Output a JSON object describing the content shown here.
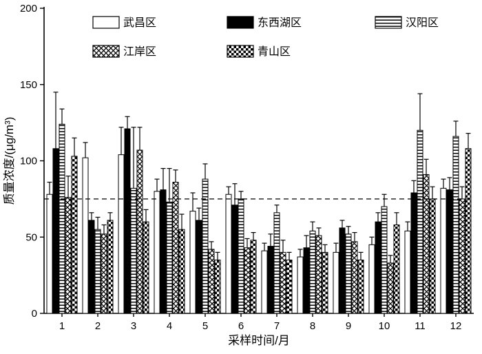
{
  "chart_data": {
    "type": "bar",
    "title": "",
    "xlabel": "采样时间/月",
    "ylabel": "质量浓度/(μg/m³)",
    "ylim": [
      0,
      200
    ],
    "yticks": [
      0,
      50,
      100,
      150,
      200
    ],
    "categories": [
      "1",
      "2",
      "3",
      "4",
      "5",
      "6",
      "7",
      "8",
      "9",
      "10",
      "11",
      "12"
    ],
    "reference_line": 75,
    "grid": false,
    "legend_position": "top-inside-two-rows",
    "bar_edge_color": "#000000",
    "series": [
      {
        "name": "武昌区",
        "pattern": "plain",
        "values": [
          78,
          102,
          104,
          80,
          67,
          78,
          41,
          37,
          40,
          45,
          54,
          82
        ],
        "errors": [
          8,
          10,
          18,
          8,
          12,
          5,
          5,
          5,
          6,
          5,
          6,
          6
        ]
      },
      {
        "name": "东西湖区",
        "pattern": "solid",
        "values": [
          108,
          61,
          121,
          81,
          61,
          71,
          44,
          43,
          56,
          60,
          79,
          81
        ],
        "errors": [
          37,
          5,
          8,
          14,
          8,
          14,
          8,
          8,
          5,
          6,
          8,
          8
        ]
      },
      {
        "name": "汉阳区",
        "pattern": "hlines",
        "values": [
          124,
          55,
          82,
          73,
          88,
          75,
          66,
          54,
          52,
          70,
          120,
          116
        ],
        "errors": [
          10,
          8,
          40,
          22,
          10,
          5,
          5,
          6,
          5,
          8,
          24,
          10
        ]
      },
      {
        "name": "江岸区",
        "pattern": "crosshatch",
        "values": [
          76,
          52,
          107,
          86,
          42,
          43,
          40,
          51,
          47,
          33,
          91,
          75
        ],
        "errors": [
          14,
          6,
          15,
          8,
          5,
          6,
          8,
          5,
          6,
          5,
          10,
          8
        ]
      },
      {
        "name": "青山区",
        "pattern": "checker",
        "values": [
          103,
          61,
          60,
          55,
          35,
          48,
          35,
          40,
          35,
          58,
          75,
          108
        ],
        "errors": [
          12,
          5,
          8,
          10,
          5,
          5,
          5,
          5,
          5,
          8,
          8,
          10
        ]
      }
    ]
  }
}
